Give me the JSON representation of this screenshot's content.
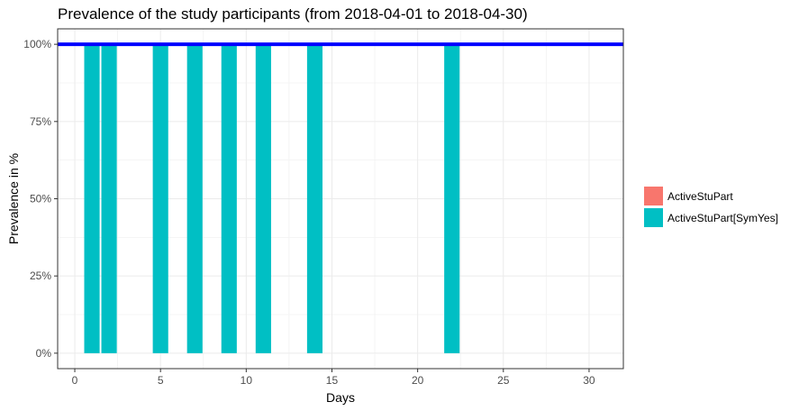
{
  "chart_data": {
    "type": "bar",
    "title": "Prevalence of the study participants (from 2018-04-01 to 2018-04-30)",
    "xlabel": "Days",
    "ylabel": "Prevalence in %",
    "xlim": [
      -1,
      32
    ],
    "ylim": [
      -0.05,
      1.05
    ],
    "xticks": [
      0,
      5,
      10,
      15,
      20,
      25,
      30
    ],
    "yticks": [
      0,
      0.25,
      0.5,
      0.75,
      1.0
    ],
    "ytick_labels": [
      "0%",
      "25%",
      "50%",
      "75%",
      "100%"
    ],
    "bar_width": 0.9,
    "grid": true,
    "legend_position": "right",
    "series": [
      {
        "name": "ActiveStuPart",
        "color": "#F8766D",
        "x": [],
        "values": []
      },
      {
        "name": "ActiveStuPart[SymYes]",
        "color": "#00BFC4",
        "x": [
          1,
          2,
          5,
          7,
          9,
          11,
          14,
          22
        ],
        "values": [
          1,
          1,
          1,
          1,
          1,
          1,
          1,
          1
        ]
      }
    ],
    "hline": {
      "y": 1.0,
      "color": "#0000FF"
    }
  }
}
